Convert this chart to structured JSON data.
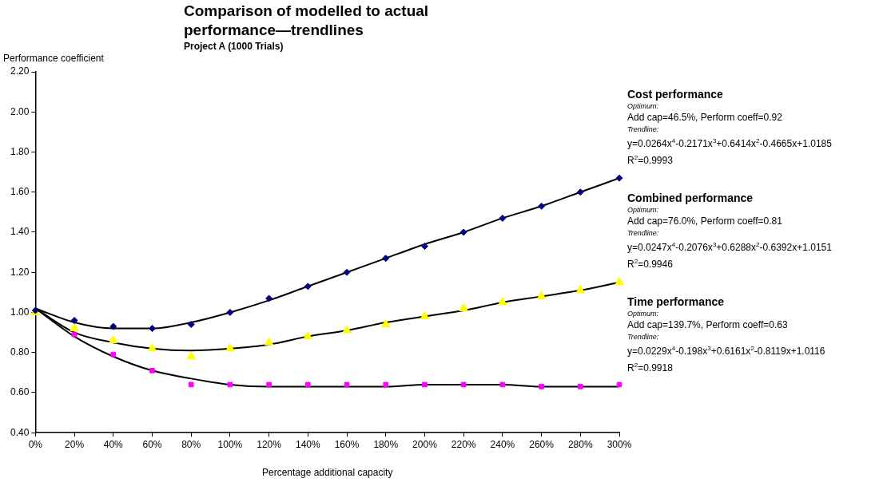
{
  "chart_data": {
    "type": "scatter",
    "title": "Comparison of modelled to actual performance—trendlines",
    "subtitle": "Project A  (1000 Trials)",
    "xlabel": "Percentage additional capacity",
    "ylabel": "Performance coefficient",
    "categories": [
      "0%",
      "20%",
      "40%",
      "60%",
      "80%",
      "100%",
      "120%",
      "140%",
      "160%",
      "180%",
      "200%",
      "220%",
      "240%",
      "260%",
      "280%",
      "300%"
    ],
    "series": [
      {
        "type": "scatter",
        "marker": "diamond",
        "color": "#000080",
        "values": [
          1.01,
          0.96,
          0.93,
          0.92,
          0.94,
          1.0,
          1.07,
          1.13,
          1.2,
          1.27,
          1.33,
          1.4,
          1.47,
          1.53,
          1.6,
          1.67
        ]
      },
      {
        "type": "scatter",
        "marker": "triangle",
        "color": "#ffff00",
        "values": [
          1.0,
          0.92,
          0.86,
          0.82,
          0.78,
          0.82,
          0.85,
          0.88,
          0.91,
          0.94,
          0.98,
          1.02,
          1.05,
          1.08,
          1.11,
          1.15
        ]
      },
      {
        "type": "scatter",
        "marker": "square",
        "color": "#ff00ff",
        "values": [
          null,
          0.89,
          0.79,
          0.71,
          0.64,
          0.64,
          0.64,
          0.64,
          0.64,
          0.64,
          0.64,
          0.64,
          0.64,
          0.63,
          0.63,
          0.64
        ]
      },
      {
        "type": "line",
        "marker": "none",
        "color": "#000000",
        "values": [
          1.02,
          0.95,
          0.92,
          0.92,
          0.95,
          1.0,
          1.06,
          1.13,
          1.2,
          1.27,
          1.34,
          1.4,
          1.47,
          1.53,
          1.6,
          1.67
        ]
      },
      {
        "type": "line",
        "marker": "none",
        "color": "#000000",
        "values": [
          1.02,
          0.9,
          0.85,
          0.82,
          0.81,
          0.82,
          0.84,
          0.88,
          0.91,
          0.95,
          0.98,
          1.01,
          1.05,
          1.08,
          1.11,
          1.15
        ]
      },
      {
        "type": "line",
        "marker": "none",
        "color": "#000000",
        "values": [
          1.02,
          0.88,
          0.78,
          0.71,
          0.67,
          0.64,
          0.63,
          0.63,
          0.63,
          0.63,
          0.64,
          0.64,
          0.64,
          0.63,
          0.63,
          0.63
        ]
      }
    ],
    "ylim": [
      0.4,
      2.2
    ],
    "yticks": [
      {
        "value": 0.4,
        "label": "0.40"
      },
      {
        "value": 0.6,
        "label": "0.60"
      },
      {
        "value": 0.8,
        "label": "0.80"
      },
      {
        "value": 1.0,
        "label": "1.00"
      },
      {
        "value": 1.2,
        "label": "1.20"
      },
      {
        "value": 1.4,
        "label": "1.40"
      },
      {
        "value": 1.6,
        "label": "1.60"
      },
      {
        "value": 1.8,
        "label": "1.80"
      },
      {
        "value": 2.0,
        "label": "2.00"
      },
      {
        "value": 2.2,
        "label": "2.20"
      }
    ],
    "grid": false,
    "legend": false,
    "annotations": [
      "Cost performance",
      "Optimum:",
      "Add cap=46.5%, Perform coeff=0.92",
      "Trendline:",
      "y=0.0264x$^{4}$-0.2171x$^{3}$+0.6414x$^{2}$-0.4665x+1.0185",
      "R$^{2}$=0.9993",
      "Combined performance",
      "Optimum:",
      "Add cap=76.0%, Perform coeff=0.81",
      "Trendline:",
      "y=0.0247x$^{4}$-0.2076x$^{3}$+0.6288x$^{2}$-0.6392x+1.0151",
      "R$^{2}$=0.9946",
      "Time performance",
      "Optimum:",
      "Add cap=139.7%, Perform coeff=0.63",
      "Trendline:",
      "y=0.0229x$^{4}$-0.198x$^{3}$+0.6161x$^{2}$-0.8119x+1.0116",
      "R$^{2}$=0.9918"
    ]
  }
}
